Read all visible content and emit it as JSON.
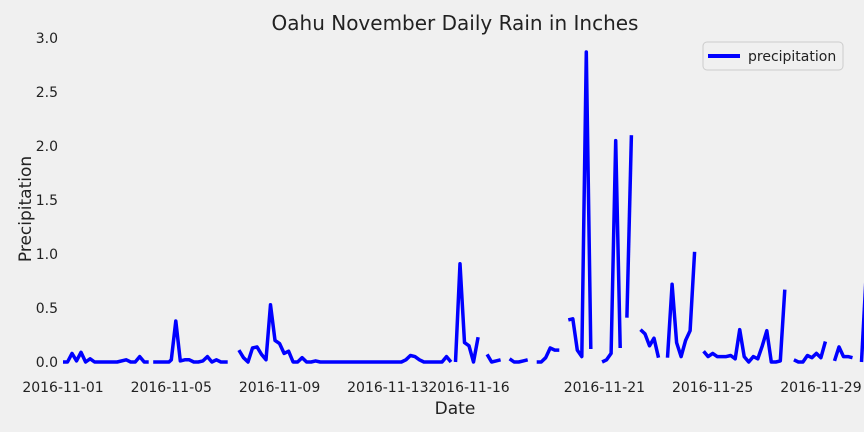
{
  "chart_data": {
    "type": "line",
    "title": "Oahu November Daily Rain in Inches",
    "xlabel": "Date",
    "ylabel": "Precipitation",
    "xlim": [
      "2016-11-01",
      "2016-11-30"
    ],
    "ylim": [
      0,
      3.0
    ],
    "yticks": [
      0.0,
      0.5,
      1.0,
      1.5,
      2.0,
      2.5,
      3.0
    ],
    "ytick_labels": [
      "0.0",
      "0.5",
      "1.0",
      "1.5",
      "2.0",
      "2.5",
      "3.0"
    ],
    "xticks": [
      "2016-11-01",
      "2016-11-05",
      "2016-11-09",
      "2016-11-13",
      "2016-11-16",
      "2016-11-21",
      "2016-11-25",
      "2016-11-29"
    ],
    "grid": false,
    "legend": {
      "position": "top-right"
    },
    "series": [
      {
        "name": "precipitation",
        "color": "#0000ff",
        "points": [
          [
            "2016-11-01T00:00",
            0.0
          ],
          [
            "2016-11-01T04:00",
            0.0
          ],
          [
            "2016-11-01T08:00",
            0.08
          ],
          [
            "2016-11-01T12:00",
            0.01
          ],
          [
            "2016-11-01T16:00",
            0.09
          ],
          [
            "2016-11-01T20:00",
            0.0
          ],
          [
            "2016-11-02T00:00",
            0.03
          ],
          [
            "2016-11-02T04:00",
            0.0
          ],
          [
            "2016-11-02T08:00",
            0.0
          ],
          [
            "2016-11-02T16:00",
            0.0
          ],
          [
            "2016-11-03T00:00",
            0.0
          ],
          [
            "2016-11-03T08:00",
            0.02
          ],
          [
            "2016-11-03T12:00",
            0.0
          ],
          [
            "2016-11-03T16:00",
            0.0
          ],
          [
            "2016-11-03T20:00",
            0.05
          ],
          [
            "2016-11-04T00:00",
            0.0
          ],
          [
            "2016-11-04T04:00",
            0.0
          ],
          null,
          [
            "2016-11-04T08:00",
            0.0
          ],
          [
            "2016-11-04T16:00",
            0.0
          ],
          [
            "2016-11-04T22:00",
            0.0
          ],
          [
            "2016-11-05T00:00",
            0.02
          ],
          [
            "2016-11-05T04:00",
            0.38
          ],
          [
            "2016-11-05T08:00",
            0.01
          ],
          [
            "2016-11-05T12:00",
            0.02
          ],
          [
            "2016-11-05T16:00",
            0.02
          ],
          [
            "2016-11-05T20:00",
            0.0
          ],
          [
            "2016-11-06T00:00",
            0.0
          ],
          [
            "2016-11-06T04:00",
            0.01
          ],
          [
            "2016-11-06T08:00",
            0.05
          ],
          [
            "2016-11-06T12:00",
            0.0
          ],
          [
            "2016-11-06T16:00",
            0.02
          ],
          [
            "2016-11-06T20:00",
            0.0
          ],
          [
            "2016-11-07T02:00",
            0.0
          ],
          null,
          [
            "2016-11-07T12:00",
            0.11
          ],
          [
            "2016-11-07T16:00",
            0.04
          ],
          [
            "2016-11-07T20:00",
            0.0
          ],
          [
            "2016-11-08T00:00",
            0.13
          ],
          [
            "2016-11-08T04:00",
            0.14
          ],
          [
            "2016-11-08T08:00",
            0.07
          ],
          [
            "2016-11-08T12:00",
            0.02
          ],
          [
            "2016-11-08T16:00",
            0.53
          ],
          [
            "2016-11-08T20:00",
            0.2
          ],
          [
            "2016-11-09T00:00",
            0.17
          ],
          [
            "2016-11-09T04:00",
            0.08
          ],
          [
            "2016-11-09T08:00",
            0.1
          ],
          [
            "2016-11-09T12:00",
            0.0
          ],
          [
            "2016-11-09T16:00",
            0.0
          ],
          [
            "2016-11-09T20:00",
            0.04
          ],
          [
            "2016-11-10T00:00",
            0.0
          ],
          [
            "2016-11-10T04:00",
            0.0
          ],
          [
            "2016-11-10T08:00",
            0.01
          ],
          [
            "2016-11-10T12:00",
            0.0
          ],
          [
            "2016-11-11T00:00",
            0.0
          ],
          [
            "2016-11-12T00:00",
            0.0
          ],
          [
            "2016-11-13T00:00",
            0.0
          ],
          [
            "2016-11-13T12:00",
            0.0
          ],
          [
            "2016-11-13T16:00",
            0.02
          ],
          [
            "2016-11-13T20:00",
            0.06
          ],
          [
            "2016-11-14T00:00",
            0.05
          ],
          [
            "2016-11-14T04:00",
            0.02
          ],
          [
            "2016-11-14T08:00",
            0.0
          ],
          [
            "2016-11-14T16:00",
            0.0
          ],
          [
            "2016-11-15T00:00",
            0.0
          ],
          [
            "2016-11-15T04:00",
            0.05
          ],
          [
            "2016-11-15T08:00",
            0.0
          ],
          null,
          [
            "2016-11-15T12:00",
            0.0
          ],
          [
            "2016-11-15T16:00",
            0.91
          ],
          [
            "2016-11-15T20:00",
            0.18
          ],
          [
            "2016-11-16T00:00",
            0.15
          ],
          [
            "2016-11-16T04:00",
            0.0
          ],
          [
            "2016-11-16T08:00",
            0.23
          ],
          null,
          [
            "2016-11-16T16:00",
            0.07
          ],
          [
            "2016-11-16T20:00",
            0.0
          ],
          [
            "2016-11-17T00:00",
            0.01
          ],
          [
            "2016-11-17T04:00",
            0.02
          ],
          null,
          [
            "2016-11-17T12:00",
            0.03
          ],
          [
            "2016-11-17T16:00",
            0.0
          ],
          [
            "2016-11-17T20:00",
            0.0
          ],
          [
            "2016-11-18T00:00",
            0.01
          ],
          [
            "2016-11-18T04:00",
            0.02
          ],
          null,
          [
            "2016-11-18T12:00",
            0.0
          ],
          [
            "2016-11-18T16:00",
            0.0
          ],
          [
            "2016-11-18T20:00",
            0.04
          ],
          [
            "2016-11-19T00:00",
            0.13
          ],
          [
            "2016-11-19T04:00",
            0.11
          ],
          [
            "2016-11-19T08:00",
            0.11
          ],
          null,
          [
            "2016-11-19T16:00",
            0.39
          ],
          [
            "2016-11-19T20:00",
            0.4
          ],
          [
            "2016-11-20T00:00",
            0.11
          ],
          [
            "2016-11-20T04:00",
            0.05
          ],
          [
            "2016-11-20T08:00",
            2.87
          ],
          [
            "2016-11-20T12:00",
            0.12
          ],
          null,
          [
            "2016-11-20T22:00",
            0.0
          ],
          [
            "2016-11-21T02:00",
            0.02
          ],
          [
            "2016-11-21T06:00",
            0.08
          ],
          [
            "2016-11-21T10:00",
            2.05
          ],
          [
            "2016-11-21T14:00",
            0.13
          ],
          null,
          [
            "2016-11-21T20:00",
            0.41
          ],
          [
            "2016-11-22T00:00",
            2.1
          ],
          null,
          [
            "2016-11-22T08:00",
            0.3
          ],
          [
            "2016-11-22T12:00",
            0.26
          ],
          [
            "2016-11-22T16:00",
            0.15
          ],
          [
            "2016-11-22T20:00",
            0.22
          ],
          [
            "2016-11-23T00:00",
            0.04
          ],
          null,
          [
            "2016-11-23T08:00",
            0.04
          ],
          [
            "2016-11-23T12:00",
            0.72
          ],
          [
            "2016-11-23T16:00",
            0.18
          ],
          [
            "2016-11-23T20:00",
            0.05
          ],
          [
            "2016-11-24T00:00",
            0.2
          ],
          [
            "2016-11-24T04:00",
            0.29
          ],
          [
            "2016-11-24T08:00",
            1.02
          ],
          null,
          [
            "2016-11-24T16:00",
            0.1
          ],
          [
            "2016-11-24T20:00",
            0.05
          ],
          [
            "2016-11-25T00:00",
            0.08
          ],
          [
            "2016-11-25T04:00",
            0.05
          ],
          [
            "2016-11-25T08:00",
            0.05
          ],
          [
            "2016-11-25T12:00",
            0.05
          ],
          [
            "2016-11-25T16:00",
            0.06
          ],
          [
            "2016-11-25T20:00",
            0.03
          ],
          [
            "2016-11-26T00:00",
            0.3
          ],
          [
            "2016-11-26T04:00",
            0.05
          ],
          [
            "2016-11-26T08:00",
            0.0
          ],
          [
            "2016-11-26T12:00",
            0.05
          ],
          [
            "2016-11-26T16:00",
            0.03
          ],
          [
            "2016-11-26T20:00",
            0.15
          ],
          [
            "2016-11-27T00:00",
            0.29
          ],
          [
            "2016-11-27T04:00",
            0.0
          ],
          [
            "2016-11-27T08:00",
            0.0
          ],
          [
            "2016-11-27T12:00",
            0.01
          ],
          [
            "2016-11-27T16:00",
            0.67
          ],
          null,
          [
            "2016-11-28T00:00",
            0.02
          ],
          [
            "2016-11-28T04:00",
            0.0
          ],
          [
            "2016-11-28T08:00",
            0.0
          ],
          [
            "2016-11-28T12:00",
            0.06
          ],
          [
            "2016-11-28T16:00",
            0.04
          ],
          [
            "2016-11-28T20:00",
            0.08
          ],
          [
            "2016-11-29T00:00",
            0.04
          ],
          [
            "2016-11-29T04:00",
            0.19
          ],
          null,
          [
            "2016-11-29T12:00",
            0.01
          ],
          [
            "2016-11-29T16:00",
            0.14
          ],
          [
            "2016-11-29T20:00",
            0.05
          ],
          [
            "2016-11-30T00:00",
            0.05
          ],
          [
            "2016-11-30T04:00",
            0.04
          ],
          null,
          [
            "2016-11-30T12:00",
            0.0
          ],
          [
            "2016-11-30T16:00",
            0.78
          ]
        ]
      }
    ]
  }
}
